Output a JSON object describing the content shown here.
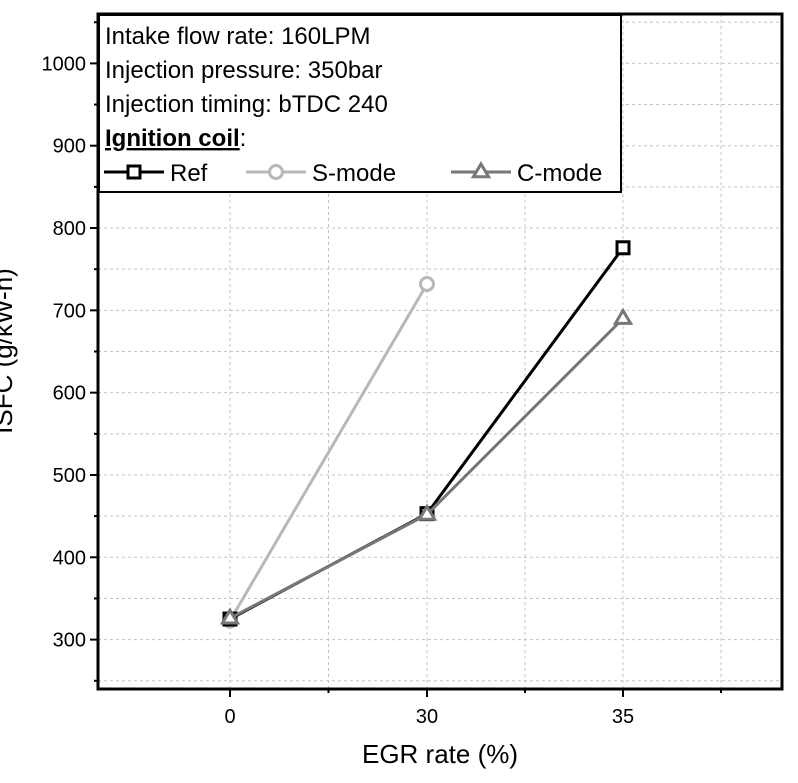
{
  "chart_data": {
    "type": "line",
    "xlabel": "EGR rate (%)",
    "ylabel": "ISFC (g/kW-h)",
    "categories": [
      "0",
      "30",
      "35"
    ],
    "ylim": [
      240,
      1060
    ],
    "yticks": [
      300,
      400,
      500,
      600,
      700,
      800,
      900,
      1000
    ],
    "grid": true,
    "legend_position": "top-left",
    "annotations": [
      "Intake flow rate: 160LPM",
      "Injection pressure: 350bar",
      "Injection timing: bTDC 240"
    ],
    "legend_title": "Ignition coil",
    "legend_title_suffix": ":",
    "series": [
      {
        "name": "Ref",
        "marker": "square",
        "color": "#000000",
        "values": [
          325,
          453,
          776
        ]
      },
      {
        "name": "S-mode",
        "marker": "circle",
        "color": "#b8b8b8",
        "values": [
          323,
          732,
          null
        ]
      },
      {
        "name": "C-mode",
        "marker": "triangle",
        "color": "#777777",
        "values": [
          326,
          452,
          690
        ]
      }
    ]
  }
}
